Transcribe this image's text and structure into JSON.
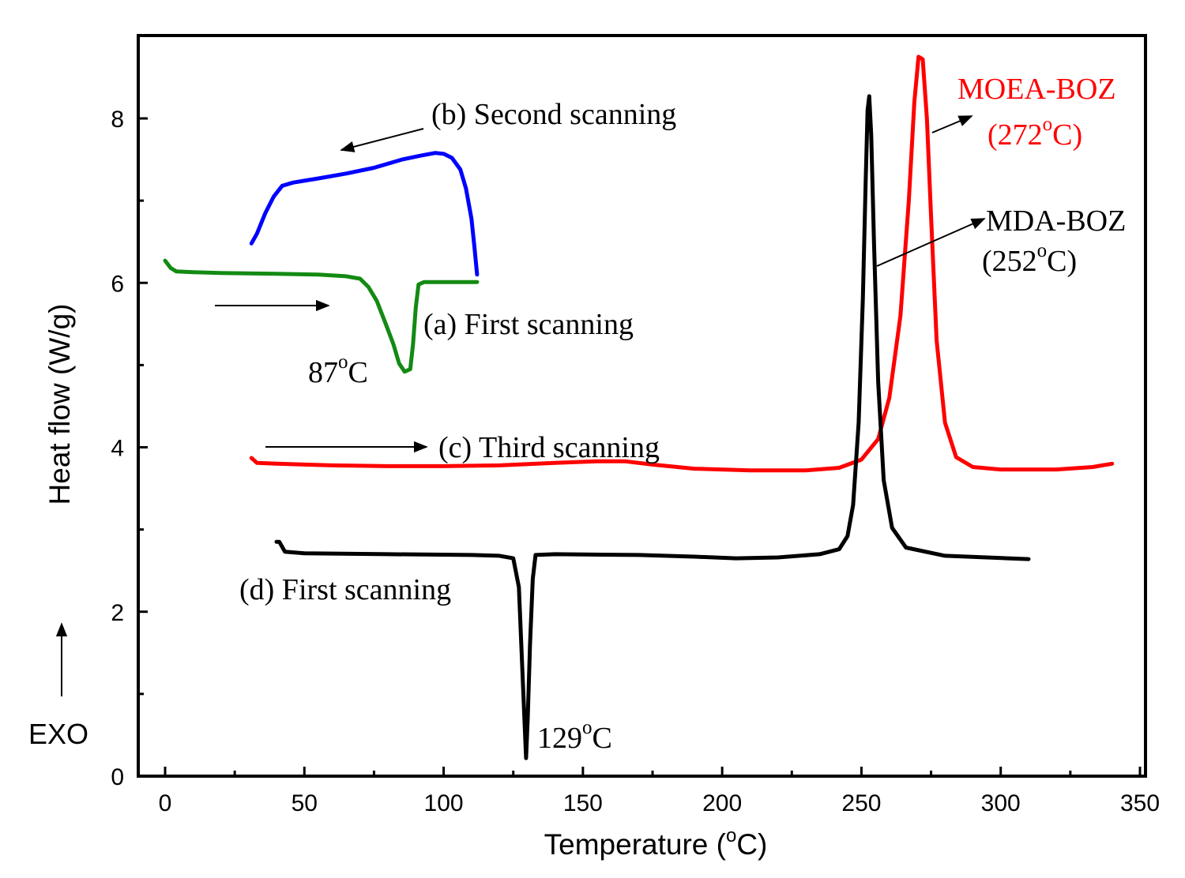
{
  "chart_data": {
    "type": "line",
    "xlabel_main": "Temperature (",
    "xlabel_sup": "o",
    "xlabel_tail": "C)",
    "ylabel": "Heat flow (W/g)",
    "xlim": [
      -10,
      350
    ],
    "ylim": [
      0,
      9
    ],
    "xticks": [
      0,
      50,
      100,
      150,
      200,
      250,
      300,
      350
    ],
    "yticks": [
      0,
      2,
      4,
      6,
      8
    ],
    "colors": {
      "blue": "#0000ff",
      "green": "#138a13",
      "red": "#ff0000",
      "black": "#000000"
    },
    "series": [
      {
        "name": "(b) Second scanning",
        "color": "#0000ff",
        "points": [
          [
            31,
            6.48
          ],
          [
            33,
            6.6
          ],
          [
            36,
            6.85
          ],
          [
            39,
            7.05
          ],
          [
            42,
            7.18
          ],
          [
            46,
            7.22
          ],
          [
            55,
            7.27
          ],
          [
            65,
            7.33
          ],
          [
            75,
            7.4
          ],
          [
            85,
            7.5
          ],
          [
            92,
            7.55
          ],
          [
            97,
            7.58
          ],
          [
            100,
            7.57
          ],
          [
            103,
            7.52
          ],
          [
            106,
            7.38
          ],
          [
            108,
            7.15
          ],
          [
            110,
            6.78
          ],
          [
            111,
            6.45
          ],
          [
            112,
            6.1
          ]
        ]
      },
      {
        "name": "(a) First scanning",
        "color": "#138a13",
        "points": [
          [
            0,
            6.27
          ],
          [
            2,
            6.18
          ],
          [
            4,
            6.14
          ],
          [
            10,
            6.13
          ],
          [
            20,
            6.12
          ],
          [
            40,
            6.11
          ],
          [
            55,
            6.1
          ],
          [
            65,
            6.08
          ],
          [
            70,
            6.05
          ],
          [
            73,
            5.95
          ],
          [
            76,
            5.78
          ],
          [
            79,
            5.52
          ],
          [
            82,
            5.25
          ],
          [
            84,
            5.02
          ],
          [
            86,
            4.92
          ],
          [
            88,
            4.95
          ],
          [
            89,
            5.25
          ],
          [
            90,
            5.7
          ],
          [
            91,
            5.98
          ],
          [
            93,
            6.01
          ],
          [
            100,
            6.01
          ],
          [
            112,
            6.01
          ]
        ]
      },
      {
        "name": "(c) Third scanning",
        "color": "#ff0000",
        "points": [
          [
            31,
            3.87
          ],
          [
            33,
            3.81
          ],
          [
            40,
            3.8
          ],
          [
            60,
            3.78
          ],
          [
            80,
            3.77
          ],
          [
            100,
            3.77
          ],
          [
            120,
            3.78
          ],
          [
            140,
            3.81
          ],
          [
            155,
            3.83
          ],
          [
            165,
            3.83
          ],
          [
            175,
            3.79
          ],
          [
            190,
            3.74
          ],
          [
            210,
            3.72
          ],
          [
            230,
            3.72
          ],
          [
            242,
            3.75
          ],
          [
            250,
            3.85
          ],
          [
            256,
            4.1
          ],
          [
            260,
            4.6
          ],
          [
            264,
            5.6
          ],
          [
            267,
            7.0
          ],
          [
            269,
            8.2
          ],
          [
            270.5,
            8.75
          ],
          [
            272,
            8.72
          ],
          [
            273.5,
            8.0
          ],
          [
            275,
            6.8
          ],
          [
            277,
            5.3
          ],
          [
            280,
            4.3
          ],
          [
            284,
            3.88
          ],
          [
            290,
            3.76
          ],
          [
            300,
            3.73
          ],
          [
            320,
            3.73
          ],
          [
            333,
            3.76
          ],
          [
            340,
            3.8
          ]
        ]
      },
      {
        "name": "(d) First scanning",
        "color": "#000000",
        "points": [
          [
            40,
            2.85
          ],
          [
            41,
            2.85
          ],
          [
            43,
            2.73
          ],
          [
            50,
            2.71
          ],
          [
            80,
            2.7
          ],
          [
            110,
            2.69
          ],
          [
            120,
            2.68
          ],
          [
            125,
            2.65
          ],
          [
            127,
            2.3
          ],
          [
            128,
            1.5
          ],
          [
            129,
            0.7
          ],
          [
            129.6,
            0.22
          ],
          [
            130.2,
            0.7
          ],
          [
            131,
            1.6
          ],
          [
            132,
            2.4
          ],
          [
            133,
            2.69
          ],
          [
            140,
            2.7
          ],
          [
            170,
            2.69
          ],
          [
            190,
            2.67
          ],
          [
            205,
            2.65
          ],
          [
            220,
            2.66
          ],
          [
            235,
            2.7
          ],
          [
            242,
            2.76
          ],
          [
            245,
            2.92
          ],
          [
            247,
            3.3
          ],
          [
            249,
            4.3
          ],
          [
            250.5,
            5.8
          ],
          [
            251.5,
            7.2
          ],
          [
            252.2,
            8.1
          ],
          [
            252.8,
            8.27
          ],
          [
            253.5,
            7.8
          ],
          [
            254.5,
            6.5
          ],
          [
            256,
            4.8
          ],
          [
            258,
            3.6
          ],
          [
            261,
            3.02
          ],
          [
            266,
            2.78
          ],
          [
            280,
            2.68
          ],
          [
            295,
            2.66
          ],
          [
            310,
            2.64
          ]
        ]
      }
    ],
    "annotations": {
      "second_scanning": "(b) Second scanning",
      "first_scanning_a": "(a) First scanning",
      "temp_87": "87",
      "third_scanning": "(c) Third scanning",
      "first_scanning_d": "(d) First scanning",
      "temp_129": "129",
      "mda_boz": "MDA-BOZ",
      "mda_boz_temp": "(252",
      "moea_boz": "MOEA-BOZ",
      "moea_boz_temp": "(272",
      "degree_sup": "o",
      "celsius_tail": "C",
      "celsius_paren_tail": "C)",
      "exo": "EXO"
    }
  }
}
